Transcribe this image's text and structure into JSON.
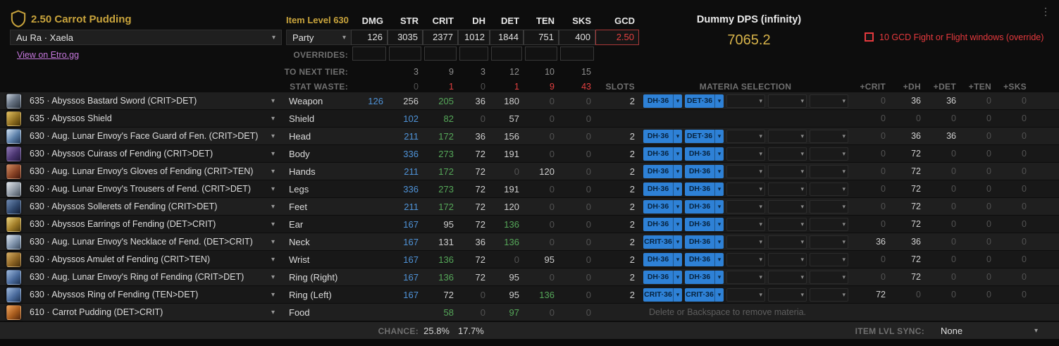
{
  "header": {
    "title": "2.50 Carrot Pudding",
    "item_level": "Item Level 630",
    "character_select": "Au Ra · Xaela",
    "party_select": "Party",
    "etro_link": "View on Etro.gg",
    "stat_columns": [
      "DMG",
      "STR",
      "CRIT",
      "DH",
      "DET",
      "TEN",
      "SKS",
      "GCD"
    ],
    "stat_values": [
      "126",
      "3035",
      "2377",
      "1012",
      "1844",
      "751",
      "400",
      "2.50"
    ],
    "overrides_label": "OVERRIDES:",
    "to_next_tier_label": "TO NEXT TIER:",
    "to_next_tier_values": [
      "3",
      "9",
      "3",
      "12",
      "10",
      "15"
    ],
    "stat_waste_label": "STAT WASTE:",
    "stat_waste_values": [
      "0",
      "1",
      "0",
      "1",
      "9",
      "43"
    ],
    "slots_label": "SLOTS",
    "materia_selection_label": "MATERIA SELECTION",
    "bonus_columns": [
      "+CRIT",
      "+DH",
      "+DET",
      "+TEN",
      "+SKS"
    ],
    "dps_label": "Dummy DPS (infinity)",
    "dps_value": "7065.2",
    "gcd_override_label": "10 GCD Fight or Flight windows (override)"
  },
  "rows": [
    {
      "name": "635 · Abyssos Bastard Sword (CRIT>DET)",
      "slot": "Weapon",
      "icon": "weapon-sword-icon",
      "stats": [
        [
          "126",
          "b"
        ],
        [
          "256",
          "w"
        ],
        [
          "205",
          "g"
        ],
        [
          "36",
          "w"
        ],
        [
          "180",
          "w"
        ],
        [
          "0",
          "z"
        ],
        [
          "0",
          "z"
        ]
      ],
      "slots": "2",
      "materia": [
        "DH·36",
        "DET·36",
        "",
        "",
        ""
      ],
      "bonus": [
        [
          "0",
          "z"
        ],
        [
          "36",
          "w"
        ],
        [
          "36",
          "w"
        ],
        [
          "0",
          "z"
        ],
        [
          "0",
          "z"
        ]
      ]
    },
    {
      "name": "635 · Abyssos Shield",
      "slot": "Shield",
      "icon": "shield-item-icon",
      "stats": [
        [
          "",
          ""
        ],
        [
          "102",
          "b"
        ],
        [
          "82",
          "g"
        ],
        [
          "0",
          "z"
        ],
        [
          "57",
          "w"
        ],
        [
          "0",
          "z"
        ],
        [
          "0",
          "z"
        ]
      ],
      "slots": "",
      "materia": null,
      "bonus": [
        [
          "0",
          "z"
        ],
        [
          "0",
          "z"
        ],
        [
          "0",
          "z"
        ],
        [
          "0",
          "z"
        ],
        [
          "0",
          "z"
        ]
      ]
    },
    {
      "name": "630 · Aug. Lunar Envoy's Face Guard of Fen. (CRIT>DET)",
      "slot": "Head",
      "icon": "head-icon",
      "stats": [
        [
          "",
          ""
        ],
        [
          "211",
          "b"
        ],
        [
          "172",
          "g"
        ],
        [
          "36",
          "w"
        ],
        [
          "156",
          "w"
        ],
        [
          "0",
          "z"
        ],
        [
          "0",
          "z"
        ]
      ],
      "slots": "2",
      "materia": [
        "DH·36",
        "DET·36",
        "",
        "",
        ""
      ],
      "bonus": [
        [
          "0",
          "z"
        ],
        [
          "36",
          "w"
        ],
        [
          "36",
          "w"
        ],
        [
          "0",
          "z"
        ],
        [
          "0",
          "z"
        ]
      ]
    },
    {
      "name": "630 · Abyssos Cuirass of Fending (CRIT>DET)",
      "slot": "Body",
      "icon": "body-icon",
      "stats": [
        [
          "",
          ""
        ],
        [
          "336",
          "b"
        ],
        [
          "273",
          "g"
        ],
        [
          "72",
          "w"
        ],
        [
          "191",
          "w"
        ],
        [
          "0",
          "z"
        ],
        [
          "0",
          "z"
        ]
      ],
      "slots": "2",
      "materia": [
        "DH·36",
        "DH·36",
        "",
        "",
        ""
      ],
      "bonus": [
        [
          "0",
          "z"
        ],
        [
          "72",
          "w"
        ],
        [
          "0",
          "z"
        ],
        [
          "0",
          "z"
        ],
        [
          "0",
          "z"
        ]
      ]
    },
    {
      "name": "630 · Aug. Lunar Envoy's Gloves of Fending (CRIT>TEN)",
      "slot": "Hands",
      "icon": "hands-icon",
      "stats": [
        [
          "",
          ""
        ],
        [
          "211",
          "b"
        ],
        [
          "172",
          "g"
        ],
        [
          "72",
          "w"
        ],
        [
          "0",
          "z"
        ],
        [
          "120",
          "w"
        ],
        [
          "0",
          "z"
        ]
      ],
      "slots": "2",
      "materia": [
        "DH·36",
        "DH·36",
        "",
        "",
        ""
      ],
      "bonus": [
        [
          "0",
          "z"
        ],
        [
          "72",
          "w"
        ],
        [
          "0",
          "z"
        ],
        [
          "0",
          "z"
        ],
        [
          "0",
          "z"
        ]
      ]
    },
    {
      "name": "630 · Aug. Lunar Envoy's Trousers of Fend. (CRIT>DET)",
      "slot": "Legs",
      "icon": "legs-icon",
      "stats": [
        [
          "",
          ""
        ],
        [
          "336",
          "b"
        ],
        [
          "273",
          "g"
        ],
        [
          "72",
          "w"
        ],
        [
          "191",
          "w"
        ],
        [
          "0",
          "z"
        ],
        [
          "0",
          "z"
        ]
      ],
      "slots": "2",
      "materia": [
        "DH·36",
        "DH·36",
        "",
        "",
        ""
      ],
      "bonus": [
        [
          "0",
          "z"
        ],
        [
          "72",
          "w"
        ],
        [
          "0",
          "z"
        ],
        [
          "0",
          "z"
        ],
        [
          "0",
          "z"
        ]
      ]
    },
    {
      "name": "630 · Abyssos Sollerets of Fending (CRIT>DET)",
      "slot": "Feet",
      "icon": "feet-icon",
      "stats": [
        [
          "",
          ""
        ],
        [
          "211",
          "b"
        ],
        [
          "172",
          "g"
        ],
        [
          "72",
          "w"
        ],
        [
          "120",
          "w"
        ],
        [
          "0",
          "z"
        ],
        [
          "0",
          "z"
        ]
      ],
      "slots": "2",
      "materia": [
        "DH·36",
        "DH·36",
        "",
        "",
        ""
      ],
      "bonus": [
        [
          "0",
          "z"
        ],
        [
          "72",
          "w"
        ],
        [
          "0",
          "z"
        ],
        [
          "0",
          "z"
        ],
        [
          "0",
          "z"
        ]
      ]
    },
    {
      "name": "630 · Abyssos Earrings of Fending (DET>CRIT)",
      "slot": "Ear",
      "icon": "earring-icon",
      "stats": [
        [
          "",
          ""
        ],
        [
          "167",
          "b"
        ],
        [
          "95",
          "w"
        ],
        [
          "72",
          "w"
        ],
        [
          "136",
          "g"
        ],
        [
          "0",
          "z"
        ],
        [
          "0",
          "z"
        ]
      ],
      "slots": "2",
      "materia": [
        "DH·36",
        "DH·36",
        "",
        "",
        ""
      ],
      "bonus": [
        [
          "0",
          "z"
        ],
        [
          "72",
          "w"
        ],
        [
          "0",
          "z"
        ],
        [
          "0",
          "z"
        ],
        [
          "0",
          "z"
        ]
      ]
    },
    {
      "name": "630 · Aug. Lunar Envoy's Necklace of Fend. (DET>CRIT)",
      "slot": "Neck",
      "icon": "necklace-icon",
      "stats": [
        [
          "",
          ""
        ],
        [
          "167",
          "b"
        ],
        [
          "131",
          "w"
        ],
        [
          "36",
          "w"
        ],
        [
          "136",
          "g"
        ],
        [
          "0",
          "z"
        ],
        [
          "0",
          "z"
        ]
      ],
      "slots": "2",
      "materia": [
        "CRIT·36",
        "DH·36",
        "",
        "",
        ""
      ],
      "bonus": [
        [
          "36",
          "w"
        ],
        [
          "36",
          "w"
        ],
        [
          "0",
          "z"
        ],
        [
          "0",
          "z"
        ],
        [
          "0",
          "z"
        ]
      ]
    },
    {
      "name": "630 · Abyssos Amulet of Fending (CRIT>TEN)",
      "slot": "Wrist",
      "icon": "bracelet-icon",
      "stats": [
        [
          "",
          ""
        ],
        [
          "167",
          "b"
        ],
        [
          "136",
          "g"
        ],
        [
          "72",
          "w"
        ],
        [
          "0",
          "z"
        ],
        [
          "95",
          "w"
        ],
        [
          "0",
          "z"
        ]
      ],
      "slots": "2",
      "materia": [
        "DH·36",
        "DH·36",
        "",
        "",
        ""
      ],
      "bonus": [
        [
          "0",
          "z"
        ],
        [
          "72",
          "w"
        ],
        [
          "0",
          "z"
        ],
        [
          "0",
          "z"
        ],
        [
          "0",
          "z"
        ]
      ]
    },
    {
      "name": "630 · Aug. Lunar Envoy's Ring of Fending (CRIT>DET)",
      "slot": "Ring (Right)",
      "icon": "ring-icon",
      "stats": [
        [
          "",
          ""
        ],
        [
          "167",
          "b"
        ],
        [
          "136",
          "g"
        ],
        [
          "72",
          "w"
        ],
        [
          "95",
          "w"
        ],
        [
          "0",
          "z"
        ],
        [
          "0",
          "z"
        ]
      ],
      "slots": "2",
      "materia": [
        "DH·36",
        "DH·36",
        "",
        "",
        ""
      ],
      "bonus": [
        [
          "0",
          "z"
        ],
        [
          "72",
          "w"
        ],
        [
          "0",
          "z"
        ],
        [
          "0",
          "z"
        ],
        [
          "0",
          "z"
        ]
      ]
    },
    {
      "name": "630 · Abyssos Ring of Fending (TEN>DET)",
      "slot": "Ring (Left)",
      "icon": "ring-icon",
      "stats": [
        [
          "",
          ""
        ],
        [
          "167",
          "b"
        ],
        [
          "72",
          "w"
        ],
        [
          "0",
          "z"
        ],
        [
          "95",
          "w"
        ],
        [
          "136",
          "g"
        ],
        [
          "0",
          "z"
        ]
      ],
      "slots": "2",
      "materia": [
        "CRIT·36",
        "CRIT·36",
        "",
        "",
        ""
      ],
      "bonus": [
        [
          "72",
          "w"
        ],
        [
          "0",
          "z"
        ],
        [
          "0",
          "z"
        ],
        [
          "0",
          "z"
        ],
        [
          "0",
          "z"
        ]
      ]
    },
    {
      "name": "610 · Carrot Pudding (DET>CRIT)",
      "slot": "Food",
      "icon": "food-icon",
      "stats": [
        [
          "",
          ""
        ],
        [
          "",
          ""
        ],
        [
          "58",
          "g"
        ],
        [
          "0",
          "z"
        ],
        [
          "97",
          "g"
        ],
        [
          "0",
          "z"
        ],
        [
          "0",
          "z"
        ]
      ],
      "slots": "",
      "materia": null,
      "materia_hint": "Delete or Backspace to remove materia.",
      "bonus": [
        [
          "",
          ""
        ],
        [
          "",
          ""
        ],
        [
          "",
          ""
        ],
        [
          "",
          ""
        ],
        [
          "",
          ""
        ]
      ]
    }
  ],
  "footer": {
    "chance_label": "CHANCE:",
    "chance_values": [
      "25.8%",
      "17.7%"
    ],
    "item_lvl_sync_label": "ITEM LVL SYNC:",
    "item_lvl_sync_value": "None"
  }
}
